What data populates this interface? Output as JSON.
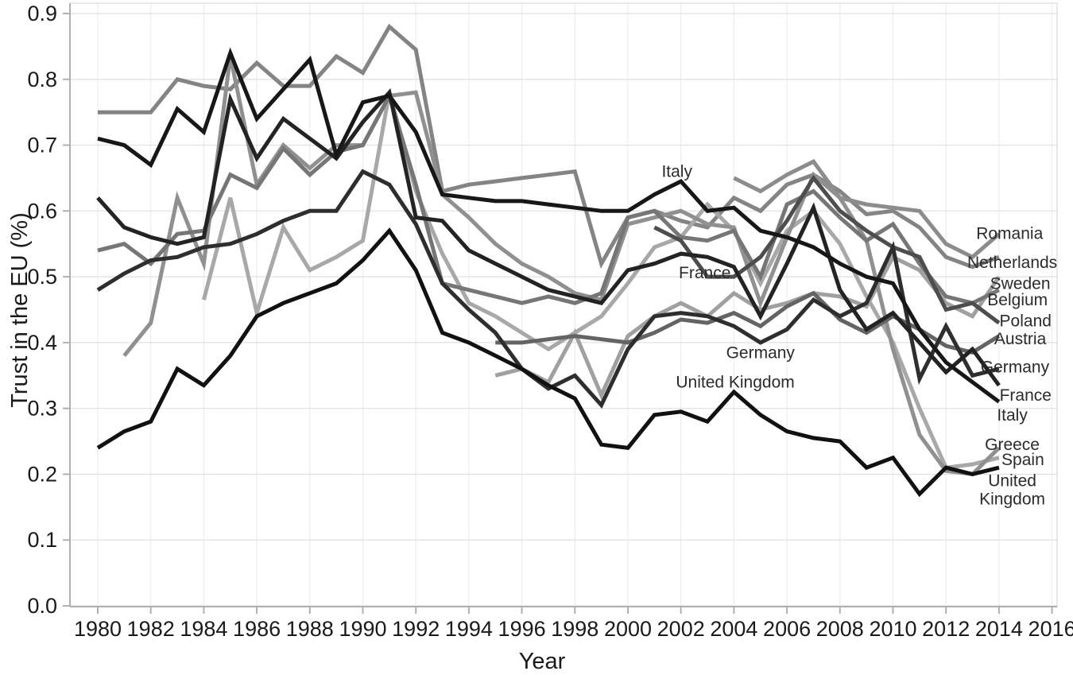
{
  "page": {
    "background": "#ffffff"
  },
  "chart_data": {
    "type": "line",
    "title": "",
    "xlabel": "Year",
    "ylabel": "Trust in the EU (%)",
    "xlim": [
      1978.95,
      2016.25
    ],
    "ylim": [
      0.0,
      0.9
    ],
    "grid": true,
    "legend_position": "inline-labels",
    "x_ticks": [
      1980,
      1982,
      1984,
      1986,
      1988,
      1990,
      1992,
      1994,
      1996,
      1998,
      2000,
      2002,
      2004,
      2006,
      2008,
      2010,
      2012,
      2014,
      2016
    ],
    "y_ticks": [
      "0.0",
      "0.1",
      "0.2",
      "0.3",
      "0.4",
      "0.5",
      "0.6",
      "0.7",
      "0.8",
      "0.9"
    ],
    "grid_color_h": "#e0e0e0",
    "grid_color_v": "#ededed",
    "axis_color": "#b0b0b0",
    "series": [
      {
        "name": "Netherlands",
        "color": "#848484",
        "start_year": 1980,
        "values": [
          0.75,
          0.75,
          0.75,
          0.8,
          0.79,
          0.785,
          0.825,
          0.79,
          0.79,
          0.835,
          0.81,
          0.88,
          0.845,
          0.63,
          0.64,
          0.645,
          0.65,
          0.655,
          0.66,
          0.52,
          0.59,
          0.6,
          0.585,
          0.575,
          0.62,
          0.6,
          0.64,
          0.655,
          0.63,
          0.595,
          0.6,
          0.575,
          0.53,
          0.515,
          0.53
        ]
      },
      {
        "name": "Romania",
        "color": "#8c8c8c",
        "start_year": 2004,
        "values": [
          0.65,
          0.63,
          0.655,
          0.675,
          0.62,
          0.61,
          0.605,
          0.6,
          0.55,
          0.53,
          0.565
        ]
      },
      {
        "name": "Sweden",
        "color": "#a0a0a0",
        "start_year": 1995,
        "values": [
          0.35,
          0.36,
          0.34,
          0.415,
          0.32,
          0.41,
          0.44,
          0.46,
          0.44,
          0.475,
          0.45,
          0.46,
          0.475,
          0.47,
          0.455,
          0.53,
          0.51,
          0.46,
          0.44,
          0.5
        ]
      },
      {
        "name": "Spain",
        "color": "#a8a8a8",
        "start_year": 1984,
        "values": [
          0.465,
          0.62,
          0.445,
          0.575,
          0.51,
          0.53,
          0.555,
          0.78,
          0.63,
          0.535,
          0.46,
          0.44,
          0.415,
          0.39,
          0.415,
          0.44,
          0.49,
          0.545,
          0.56,
          0.61,
          0.57,
          0.49,
          0.57,
          0.6,
          0.55,
          0.47,
          0.4,
          0.3,
          0.21,
          0.215,
          0.225
        ]
      },
      {
        "name": "Greece",
        "color": "#909090",
        "start_year": 1981,
        "values": [
          0.38,
          0.43,
          0.62,
          0.52,
          0.835,
          0.64,
          0.7,
          0.665,
          0.7,
          0.7,
          0.775,
          0.78,
          0.625,
          0.59,
          0.55,
          0.52,
          0.5,
          0.475,
          0.465,
          0.58,
          0.59,
          0.6,
          0.58,
          0.575,
          0.46,
          0.56,
          0.655,
          0.62,
          0.555,
          0.39,
          0.26,
          0.205,
          0.2,
          0.24
        ]
      },
      {
        "name": "Belgium",
        "color": "#767676",
        "start_year": 1980,
        "values": [
          0.54,
          0.55,
          0.52,
          0.565,
          0.57,
          0.655,
          0.635,
          0.695,
          0.655,
          0.69,
          0.7,
          0.775,
          0.64,
          0.49,
          0.48,
          0.47,
          0.46,
          0.47,
          0.46,
          0.475,
          0.59,
          0.6,
          0.56,
          0.555,
          0.57,
          0.5,
          0.61,
          0.63,
          0.59,
          0.555,
          0.58,
          0.52,
          0.47,
          0.46,
          0.48
        ]
      },
      {
        "name": "Austria",
        "color": "#646464",
        "start_year": 1995,
        "values": [
          0.4,
          0.4,
          0.405,
          0.41,
          0.405,
          0.4,
          0.415,
          0.435,
          0.43,
          0.445,
          0.425,
          0.455,
          0.475,
          0.435,
          0.415,
          0.44,
          0.42,
          0.395,
          0.385,
          0.41
        ]
      },
      {
        "name": "Poland",
        "color": "#4d4d4d",
        "start_year": 2001,
        "values": [
          0.575,
          0.555,
          0.5,
          0.5,
          0.53,
          0.585,
          0.65,
          0.6,
          0.57,
          0.545,
          0.53,
          0.45,
          0.46,
          0.43
        ]
      },
      {
        "name": "Germany",
        "color": "#2e2e2e",
        "start_year": 1980,
        "values": [
          0.48,
          0.505,
          0.525,
          0.53,
          0.545,
          0.55,
          0.565,
          0.585,
          0.6,
          0.6,
          0.66,
          0.64,
          0.58,
          0.49,
          0.45,
          0.415,
          0.36,
          0.33,
          0.35,
          0.305,
          0.39,
          0.44,
          0.445,
          0.44,
          0.425,
          0.4,
          0.42,
          0.465,
          0.44,
          0.46,
          0.545,
          0.345,
          0.425,
          0.35,
          0.36
        ]
      },
      {
        "name": "France",
        "color": "#232323",
        "start_year": 1980,
        "values": [
          0.62,
          0.575,
          0.56,
          0.55,
          0.56,
          0.77,
          0.68,
          0.74,
          0.71,
          0.68,
          0.735,
          0.78,
          0.59,
          0.585,
          0.54,
          0.52,
          0.5,
          0.48,
          0.47,
          0.46,
          0.51,
          0.52,
          0.535,
          0.53,
          0.515,
          0.44,
          0.52,
          0.605,
          0.48,
          0.42,
          0.445,
          0.4,
          0.355,
          0.39,
          0.335
        ]
      },
      {
        "name": "Italy",
        "color": "#171717",
        "start_year": 1980,
        "values": [
          0.71,
          0.7,
          0.67,
          0.755,
          0.72,
          0.84,
          0.74,
          0.785,
          0.83,
          0.685,
          0.765,
          0.775,
          0.72,
          0.625,
          0.62,
          0.615,
          0.615,
          0.61,
          0.605,
          0.6,
          0.6,
          0.625,
          0.645,
          0.6,
          0.605,
          0.57,
          0.56,
          0.545,
          0.52,
          0.5,
          0.49,
          0.42,
          0.37,
          0.34,
          0.31
        ]
      },
      {
        "name": "United Kingdom",
        "color": "#111111",
        "start_year": 1980,
        "values": [
          0.24,
          0.265,
          0.28,
          0.36,
          0.335,
          0.38,
          0.44,
          0.46,
          0.475,
          0.49,
          0.525,
          0.57,
          0.51,
          0.415,
          0.4,
          0.38,
          0.36,
          0.335,
          0.315,
          0.245,
          0.24,
          0.29,
          0.295,
          0.28,
          0.325,
          0.29,
          0.265,
          0.255,
          0.25,
          0.21,
          0.225,
          0.17,
          0.21,
          0.2,
          0.21
        ]
      }
    ],
    "annotations": [
      {
        "text": "Italy",
        "year": 2001.85,
        "value": 0.66
      },
      {
        "text": "France",
        "year": 2002.9,
        "value": 0.506
      },
      {
        "text": "Germany",
        "year": 2005.0,
        "value": 0.385
      },
      {
        "text": "United Kingdom",
        "year": 2004.05,
        "value": 0.34
      },
      {
        "text": "Romania",
        "year": 2014.4,
        "value": 0.566
      },
      {
        "text": "Netherlands",
        "year": 2014.5,
        "value": 0.522
      },
      {
        "text": "Sweden",
        "year": 2014.8,
        "value": 0.49
      },
      {
        "text": "Belgium",
        "year": 2014.7,
        "value": 0.465
      },
      {
        "text": "Poland",
        "year": 2015.0,
        "value": 0.433
      },
      {
        "text": "Austria",
        "year": 2014.8,
        "value": 0.406
      },
      {
        "text": "Germany",
        "year": 2014.6,
        "value": 0.363
      },
      {
        "text": "France",
        "year": 2015.0,
        "value": 0.32
      },
      {
        "text": "Italy",
        "year": 2014.5,
        "value": 0.29
      },
      {
        "text": "Greece",
        "year": 2014.5,
        "value": 0.245
      },
      {
        "text": "Spain",
        "year": 2014.9,
        "value": 0.222
      },
      {
        "text": "United\nKingdom",
        "year": 2014.5,
        "value": 0.19
      }
    ]
  }
}
